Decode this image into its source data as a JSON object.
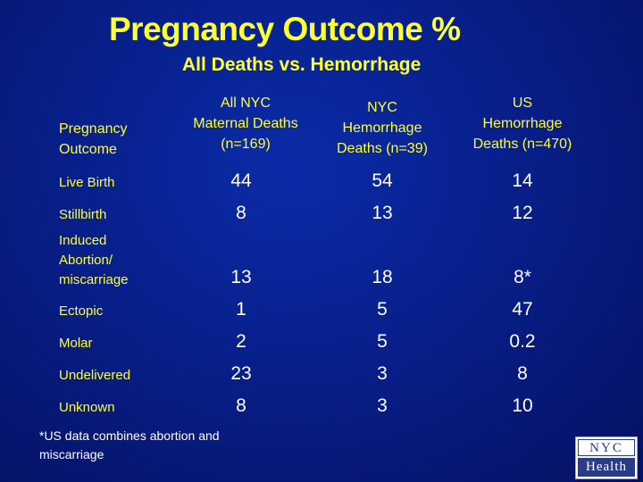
{
  "title": "Pregnancy Outcome %",
  "subtitle": "All Deaths vs. Hemorrhage",
  "table": {
    "row_header": [
      "Pregnancy",
      "Outcome"
    ],
    "columns": [
      {
        "lines": [
          "All NYC",
          "Maternal Deaths",
          "(n=169)"
        ]
      },
      {
        "lines": [
          "NYC",
          "Hemorrhage",
          "Deaths  (n=39)"
        ]
      },
      {
        "lines": [
          "US",
          "Hemorrhage",
          "Deaths (n=470)"
        ]
      }
    ],
    "rows": [
      {
        "label": [
          "Live Birth"
        ],
        "values": [
          "44",
          "54",
          "14"
        ]
      },
      {
        "label": [
          "Stillbirth"
        ],
        "values": [
          "8",
          "13",
          "12"
        ]
      },
      {
        "label": [
          "Induced",
          "Abortion/",
          "miscarriage"
        ],
        "values": [
          "13",
          "18",
          "8*"
        ]
      },
      {
        "label": [
          "Ectopic"
        ],
        "values": [
          "1",
          "5",
          "47"
        ]
      },
      {
        "label": [
          "Molar"
        ],
        "values": [
          "2",
          "5",
          "0.2"
        ]
      },
      {
        "label": [
          "Undelivered"
        ],
        "values": [
          "23",
          "3",
          "8"
        ]
      },
      {
        "label": [
          "Unknown"
        ],
        "values": [
          "8",
          "3",
          "10"
        ]
      }
    ]
  },
  "footnote": [
    "*US data combines abortion and",
    "miscarriage"
  ],
  "logo": {
    "top": "NYC",
    "bottom": "Health"
  },
  "colors": {
    "heading": "#ffff33",
    "values": "#ffffff",
    "background": "#081f8a"
  }
}
